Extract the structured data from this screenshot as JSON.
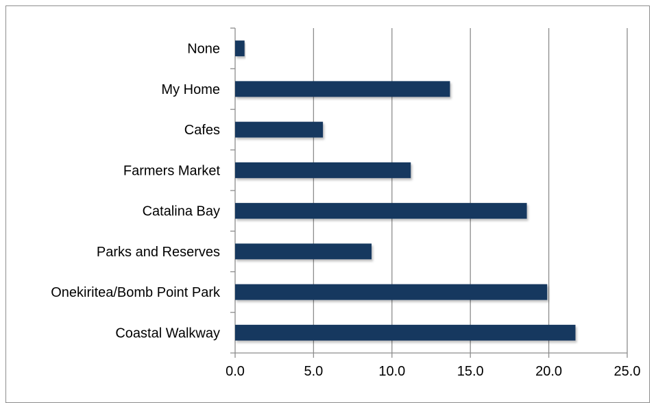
{
  "chart_data": {
    "type": "bar",
    "orientation": "horizontal",
    "categories": [
      "None",
      "My Home",
      "Cafes",
      "Farmers Market",
      "Catalina Bay",
      "Parks and Reserves",
      "Onekiritea/Bomb Point Park",
      "Coastal Walkway"
    ],
    "values": [
      0.6,
      13.7,
      5.6,
      11.2,
      18.6,
      8.7,
      19.9,
      21.7
    ],
    "xlim": [
      0,
      25
    ],
    "xticks": [
      "0.0",
      "5.0",
      "10.0",
      "15.0",
      "20.0",
      "25.0"
    ],
    "title": "",
    "xlabel": "",
    "ylabel": "",
    "grid": "vertical",
    "bar_color": "#17375e"
  }
}
